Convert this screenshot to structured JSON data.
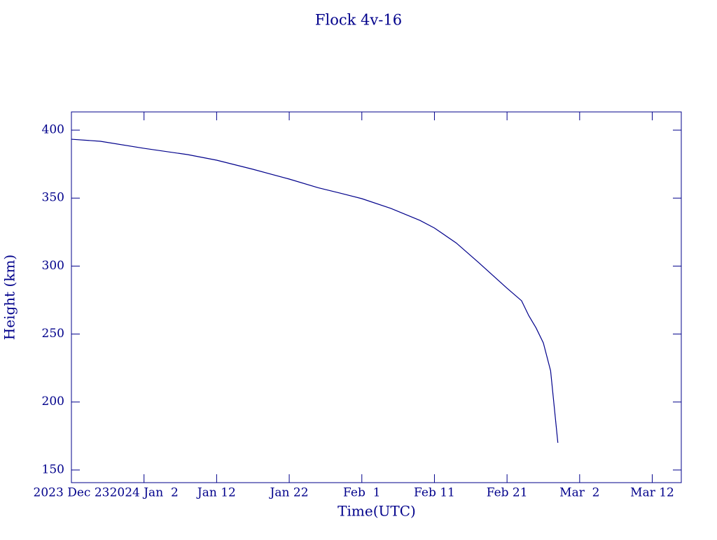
{
  "chart_data": {
    "type": "line",
    "title": "Flock 4v-16",
    "x_label": "Time(UTC)",
    "y_label": "Height (km)",
    "x": [
      "2023-12-23",
      "2023-12-27",
      "2024-01-02",
      "2024-01-08",
      "2024-01-12",
      "2024-01-17",
      "2024-01-22",
      "2024-01-26",
      "2024-01-29",
      "2024-02-01",
      "2024-02-05",
      "2024-02-09",
      "2024-02-11",
      "2024-02-14",
      "2024-02-17",
      "2024-02-21",
      "2024-02-23",
      "2024-02-24",
      "2024-02-25",
      "2024-02-26",
      "2024-02-27",
      "2024-02-28"
    ],
    "series": [
      {
        "name": "Height",
        "color": "#00008b",
        "values": [
          393.3,
          391.8,
          386.6,
          382,
          377.9,
          371.2,
          364,
          357.6,
          353.7,
          349.6,
          342.4,
          333.6,
          328,
          317,
          303,
          283.7,
          274.5,
          263.5,
          254.5,
          243.5,
          223,
          170
        ]
      }
    ],
    "xlim": [
      "2023-12-23",
      "2024-03-16"
    ],
    "xticks": [
      {
        "value": "2023-12-23",
        "label": "2023 Dec 23"
      },
      {
        "value": "2024-01-02",
        "label": "2024 Jan  2"
      },
      {
        "value": "2024-01-12",
        "label": "Jan 12"
      },
      {
        "value": "2024-01-22",
        "label": "Jan 22"
      },
      {
        "value": "2024-02-01",
        "label": "Feb  1"
      },
      {
        "value": "2024-02-11",
        "label": "Feb 11"
      },
      {
        "value": "2024-02-21",
        "label": "Feb 21"
      },
      {
        "value": "2024-03-02",
        "label": "Mar  2"
      },
      {
        "value": "2024-03-12",
        "label": "Mar 12"
      }
    ],
    "ylim": [
      140.7,
      413.4
    ],
    "yticks": [
      150,
      200,
      250,
      300,
      350,
      400
    ]
  }
}
